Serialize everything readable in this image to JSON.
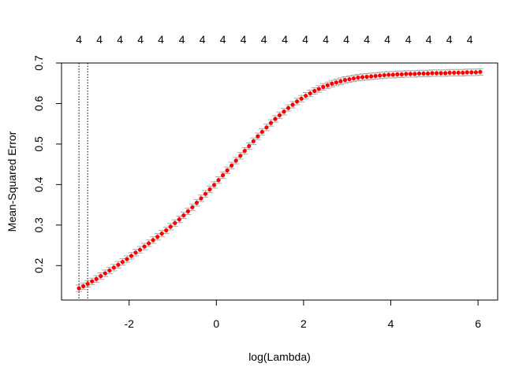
{
  "chart_data": {
    "type": "scatter",
    "title": "",
    "xlabel": "log(Lambda)",
    "ylabel": "Mean-Squared Error",
    "xlim": [
      -3.55,
      6.45
    ],
    "ylim": [
      0.115,
      0.7
    ],
    "x_ticks": [
      -2,
      0,
      2,
      4,
      6
    ],
    "x_tick_labels": [
      "-2",
      "0",
      "2",
      "4",
      "6"
    ],
    "y_ticks": [
      0.2,
      0.3,
      0.4,
      0.5,
      0.6,
      0.7
    ],
    "y_tick_labels": [
      "0.2",
      "0.3",
      "0.4",
      "0.5",
      "0.6",
      "0.7"
    ],
    "top_axis_labels": [
      "4",
      "4",
      "4",
      "4",
      "4",
      "4",
      "4",
      "4",
      "4",
      "4",
      "4",
      "4",
      "4",
      "4",
      "4",
      "4",
      "4",
      "4",
      "4",
      "4"
    ],
    "top_axis_positions": [
      -3.15,
      -2.68,
      -2.21,
      -1.74,
      -1.27,
      -0.79,
      -0.32,
      0.15,
      0.62,
      1.09,
      1.57,
      2.04,
      2.51,
      2.98,
      3.45,
      3.92,
      4.4,
      4.87,
      5.34,
      5.81
    ],
    "vlines": [
      -3.15,
      -2.95
    ],
    "grid": false,
    "legend": "none",
    "point_color": "#ff0000",
    "errorbar_color": "#a9a9a9",
    "x": [
      -3.15,
      -3.05,
      -2.95,
      -2.85,
      -2.75,
      -2.65,
      -2.55,
      -2.45,
      -2.35,
      -2.25,
      -2.15,
      -2.05,
      -1.95,
      -1.85,
      -1.75,
      -1.65,
      -1.55,
      -1.45,
      -1.35,
      -1.25,
      -1.15,
      -1.05,
      -0.95,
      -0.85,
      -0.75,
      -0.65,
      -0.55,
      -0.45,
      -0.35,
      -0.25,
      -0.15,
      -0.05,
      0.05,
      0.15,
      0.25,
      0.35,
      0.45,
      0.55,
      0.65,
      0.75,
      0.85,
      0.95,
      1.05,
      1.15,
      1.25,
      1.35,
      1.45,
      1.55,
      1.65,
      1.75,
      1.85,
      1.95,
      2.05,
      2.15,
      2.25,
      2.35,
      2.45,
      2.55,
      2.65,
      2.75,
      2.85,
      2.95,
      3.05,
      3.15,
      3.25,
      3.35,
      3.45,
      3.55,
      3.65,
      3.75,
      3.85,
      3.95,
      4.05,
      4.15,
      4.25,
      4.35,
      4.45,
      4.55,
      4.65,
      4.75,
      4.85,
      4.95,
      5.05,
      5.15,
      5.25,
      5.35,
      5.45,
      5.55,
      5.65,
      5.75,
      5.85,
      5.95,
      6.05
    ],
    "y": [
      0.144,
      0.149,
      0.155,
      0.161,
      0.167,
      0.174,
      0.181,
      0.188,
      0.195,
      0.202,
      0.209,
      0.216,
      0.224,
      0.232,
      0.239,
      0.247,
      0.255,
      0.263,
      0.271,
      0.279,
      0.287,
      0.296,
      0.305,
      0.314,
      0.324,
      0.334,
      0.344,
      0.355,
      0.366,
      0.377,
      0.388,
      0.399,
      0.411,
      0.423,
      0.435,
      0.447,
      0.459,
      0.471,
      0.483,
      0.495,
      0.507,
      0.519,
      0.53,
      0.541,
      0.552,
      0.562,
      0.571,
      0.58,
      0.589,
      0.597,
      0.605,
      0.612,
      0.619,
      0.625,
      0.631,
      0.636,
      0.641,
      0.645,
      0.649,
      0.652,
      0.655,
      0.658,
      0.66,
      0.662,
      0.664,
      0.665,
      0.666,
      0.667,
      0.668,
      0.669,
      0.67,
      0.671,
      0.671,
      0.672,
      0.672,
      0.673,
      0.673,
      0.673,
      0.674,
      0.674,
      0.674,
      0.675,
      0.675,
      0.675,
      0.675,
      0.676,
      0.676,
      0.676,
      0.676,
      0.677,
      0.677,
      0.677,
      0.678
    ],
    "error_half_width": 0.008
  }
}
